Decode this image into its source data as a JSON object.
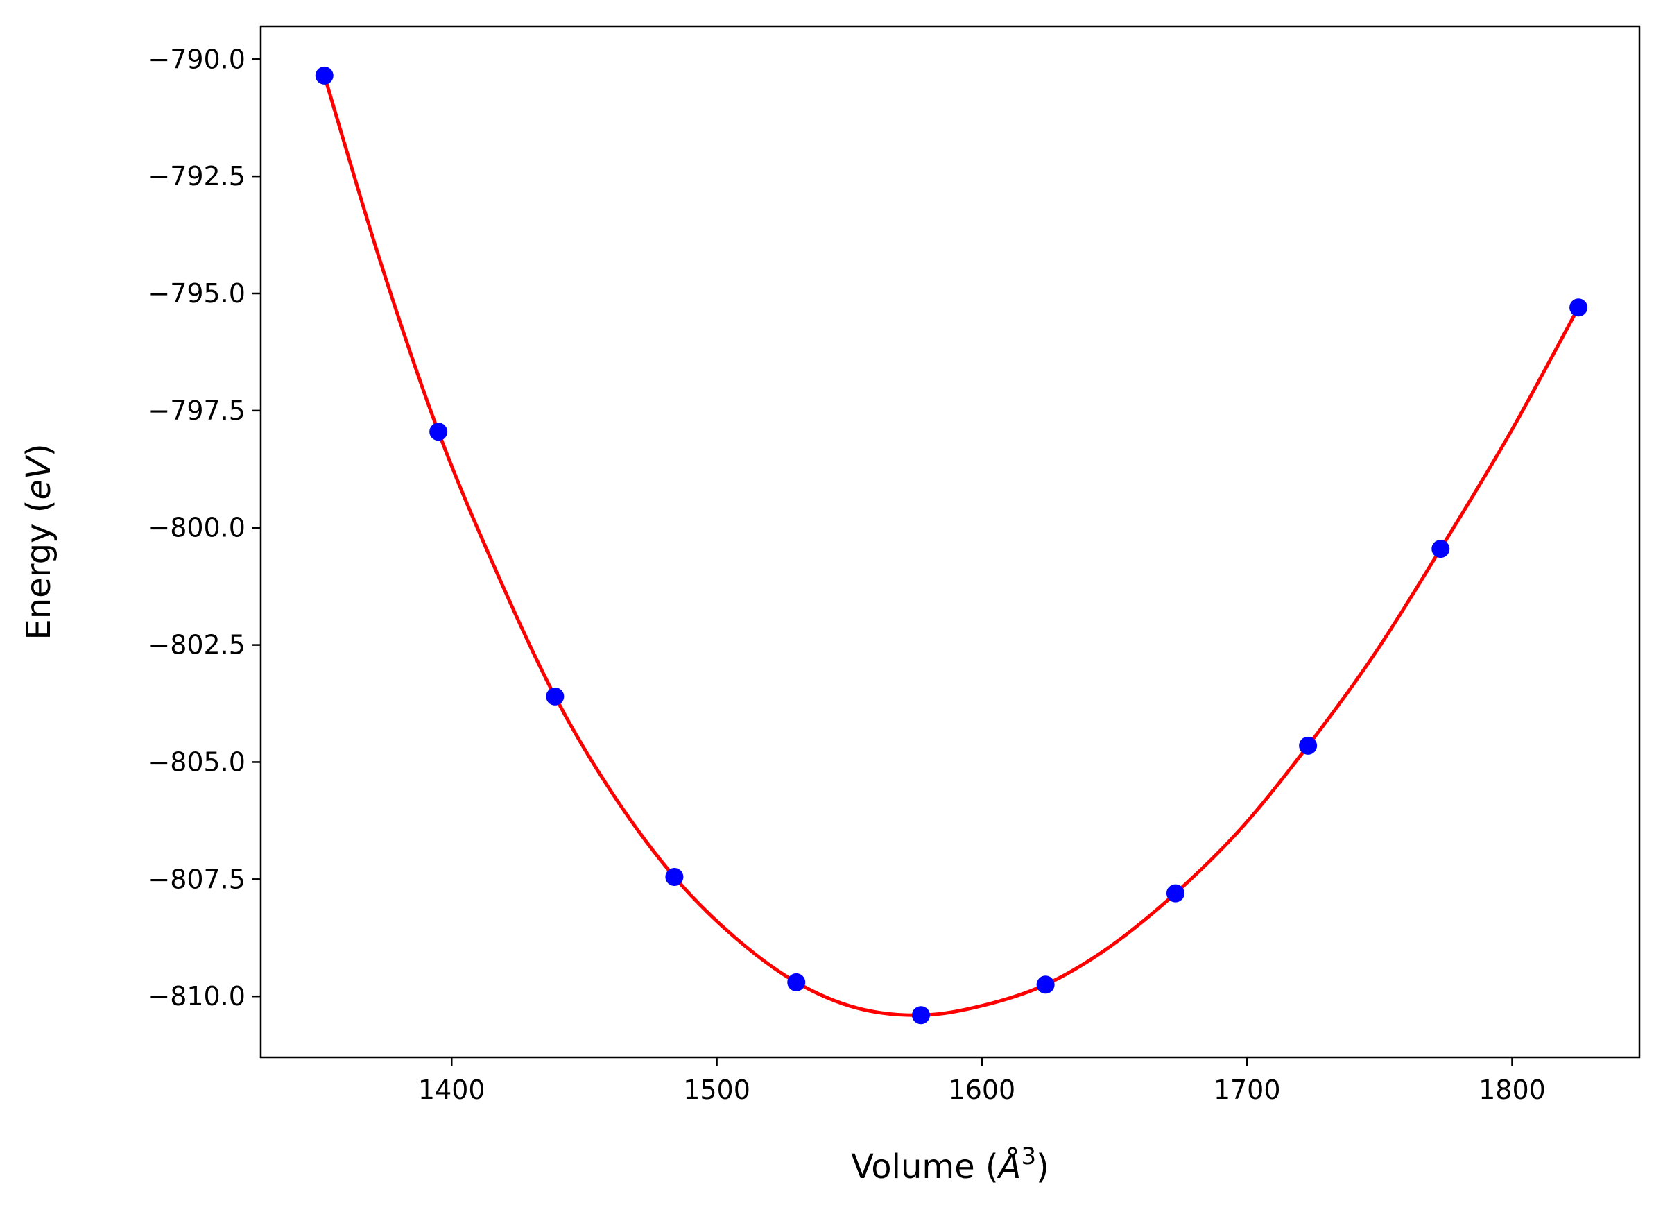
{
  "chart_data": {
    "type": "line",
    "title": "",
    "xlabel": {
      "main": "Volume (",
      "italic": "Å",
      "sup": "3",
      "end": ")"
    },
    "ylabel": {
      "main": "Energy (",
      "italic": "eV",
      "end": ")"
    },
    "xlim": [
      1328,
      1848
    ],
    "ylim": [
      -811.3,
      -789.3
    ],
    "xticks": [
      1400,
      1500,
      1600,
      1700,
      1800
    ],
    "xtick_labels": [
      "1400",
      "1500",
      "1600",
      "1700",
      "1800"
    ],
    "yticks": [
      -790.0,
      -792.5,
      -795.0,
      -797.5,
      -800.0,
      -802.5,
      -805.0,
      -807.5,
      -810.0
    ],
    "ytick_labels": [
      "−790.0",
      "−792.5",
      "−795.0",
      "−797.5",
      "−800.0",
      "−802.5",
      "−805.0",
      "−807.5",
      "−810.0"
    ],
    "grid": false,
    "series": [
      {
        "kind": "scatter",
        "color": "#0000ff",
        "x": [
          1352,
          1395,
          1439,
          1484,
          1530,
          1577,
          1624,
          1673,
          1723,
          1773,
          1825
        ],
        "y": [
          -790.35,
          -797.95,
          -803.6,
          -807.45,
          -809.7,
          -810.4,
          -809.75,
          -807.8,
          -804.65,
          -800.45,
          -795.3
        ]
      },
      {
        "kind": "fit-line",
        "color": "#ff0000",
        "x": [
          1352,
          1373,
          1395,
          1417,
          1439,
          1461,
          1484,
          1507,
          1530,
          1553,
          1577,
          1600,
          1624,
          1648,
          1673,
          1698,
          1723,
          1748,
          1773,
          1799,
          1825
        ],
        "y": [
          -790.35,
          -794.3,
          -797.95,
          -800.95,
          -803.6,
          -805.7,
          -807.45,
          -808.75,
          -809.7,
          -810.25,
          -810.4,
          -810.2,
          -809.75,
          -808.95,
          -807.8,
          -806.4,
          -804.65,
          -802.7,
          -800.45,
          -798.0,
          -795.3
        ]
      }
    ]
  }
}
